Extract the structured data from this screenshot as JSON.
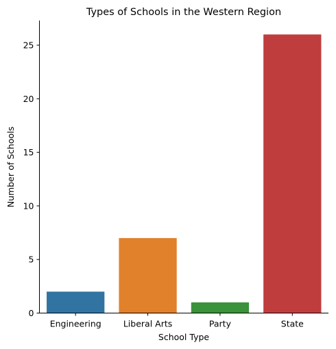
{
  "chart_data": {
    "type": "bar",
    "title": "Types of Schools in the Western Region",
    "xlabel": "School Type",
    "ylabel": "Number of Schools",
    "categories": [
      "Engineering",
      "Liberal Arts",
      "Party",
      "State"
    ],
    "values": [
      2,
      7,
      1,
      26
    ],
    "colors": [
      "#3274a1",
      "#e1812c",
      "#3a923a",
      "#c03d3e"
    ],
    "ylim": [
      0,
      27.3
    ],
    "yticks": [
      0,
      5,
      10,
      15,
      20,
      25
    ],
    "grid": false,
    "legend": "none"
  }
}
